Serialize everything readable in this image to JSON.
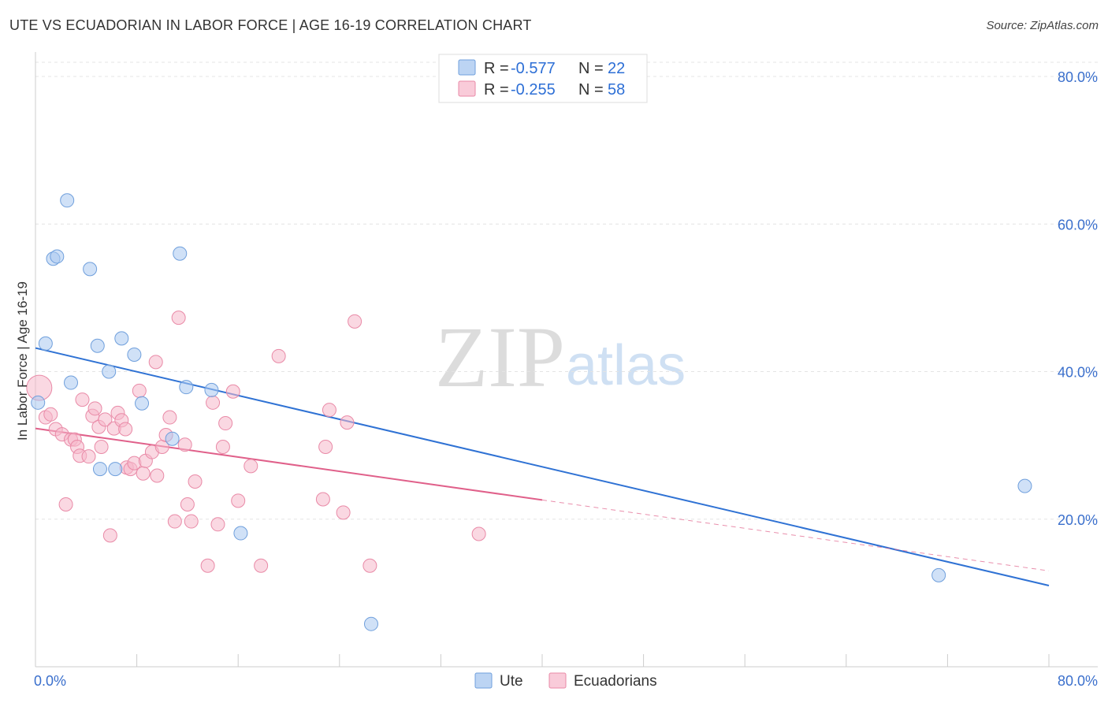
{
  "header": {
    "title": "UTE VS ECUADORIAN IN LABOR FORCE | AGE 16-19 CORRELATION CHART",
    "source": "Source: ZipAtlas.com"
  },
  "watermark": {
    "zip": "ZIP",
    "atlas": "atlas"
  },
  "legend": {
    "rows": [
      {
        "r_label": "R =",
        "r_value": "-0.577",
        "n_label": "N =",
        "n_value": "22",
        "color": "#a9c8f0"
      },
      {
        "r_label": "R =",
        "r_value": "-0.255",
        "n_label": "N =",
        "n_value": "58",
        "color": "#f5b8cb"
      }
    ]
  },
  "chart_data": {
    "type": "scatter",
    "title": "UTE VS ECUADORIAN IN LABOR FORCE | AGE 16-19 CORRELATION CHART",
    "xlabel": "",
    "ylabel": "In Labor Force | Age 16-19",
    "xlim": [
      0,
      80
    ],
    "ylim": [
      0,
      80
    ],
    "x_tick_labels": [
      "0.0%",
      "80.0%"
    ],
    "y_ticks": [
      20,
      40,
      60,
      80
    ],
    "y_tick_labels": [
      "20.0%",
      "40.0%",
      "60.0%",
      "80.0%"
    ],
    "grid": true,
    "legend_position": "bottom",
    "series": [
      {
        "name": "Ute",
        "color": "#a9c8f0",
        "stroke": "#6f9fdc",
        "line_color": "#2f72d4",
        "trend": {
          "x0": 0,
          "y0": 43.2,
          "x1": 80,
          "y1": 11.0
        },
        "points": [
          [
            0.2,
            35.8
          ],
          [
            0.8,
            43.8
          ],
          [
            1.4,
            55.3
          ],
          [
            1.7,
            55.6
          ],
          [
            2.5,
            63.2
          ],
          [
            2.8,
            38.5
          ],
          [
            4.3,
            53.9
          ],
          [
            4.9,
            43.5
          ],
          [
            5.1,
            26.8
          ],
          [
            5.8,
            40.0
          ],
          [
            6.3,
            26.8
          ],
          [
            6.8,
            44.5
          ],
          [
            7.8,
            42.3
          ],
          [
            8.4,
            35.7
          ],
          [
            10.8,
            30.9
          ],
          [
            11.4,
            56.0
          ],
          [
            11.9,
            37.9
          ],
          [
            13.9,
            37.5
          ],
          [
            16.2,
            18.1
          ],
          [
            26.5,
            5.8
          ],
          [
            71.3,
            12.4
          ],
          [
            78.1,
            24.5
          ]
        ]
      },
      {
        "name": "Ecuadorians",
        "color": "#f5b8cb",
        "stroke": "#e98aa7",
        "line_color": "#e0608a",
        "trend": {
          "x0": 0,
          "y0": 32.3,
          "x1": 40,
          "y1": 22.6
        },
        "trend_extension": {
          "x0": 40,
          "y0": 22.6,
          "x1": 80,
          "y1": 13.0
        },
        "points": [
          [
            0.3,
            37.8
          ],
          [
            0.8,
            33.8
          ],
          [
            1.2,
            34.2
          ],
          [
            1.6,
            32.2
          ],
          [
            2.1,
            31.5
          ],
          [
            2.4,
            22.0
          ],
          [
            2.8,
            30.8
          ],
          [
            3.1,
            30.8
          ],
          [
            3.3,
            29.8
          ],
          [
            3.5,
            28.6
          ],
          [
            3.7,
            36.2
          ],
          [
            4.2,
            28.5
          ],
          [
            4.5,
            34.0
          ],
          [
            4.7,
            35.0
          ],
          [
            5.0,
            32.5
          ],
          [
            5.2,
            29.8
          ],
          [
            5.5,
            33.5
          ],
          [
            5.9,
            17.8
          ],
          [
            6.2,
            32.3
          ],
          [
            6.5,
            34.4
          ],
          [
            6.8,
            33.4
          ],
          [
            7.1,
            32.2
          ],
          [
            7.2,
            27.0
          ],
          [
            7.5,
            26.8
          ],
          [
            7.8,
            27.6
          ],
          [
            8.2,
            37.4
          ],
          [
            8.5,
            26.2
          ],
          [
            8.7,
            27.9
          ],
          [
            9.2,
            29.1
          ],
          [
            9.5,
            41.3
          ],
          [
            10.0,
            29.8
          ],
          [
            10.3,
            31.4
          ],
          [
            10.6,
            33.8
          ],
          [
            11.0,
            19.7
          ],
          [
            11.3,
            47.3
          ],
          [
            11.8,
            30.1
          ],
          [
            12.0,
            22.0
          ],
          [
            12.3,
            19.7
          ],
          [
            12.6,
            25.1
          ],
          [
            13.6,
            13.7
          ],
          [
            14.0,
            35.8
          ],
          [
            14.4,
            19.3
          ],
          [
            14.8,
            29.8
          ],
          [
            15.0,
            33.0
          ],
          [
            15.6,
            37.3
          ],
          [
            17.0,
            27.2
          ],
          [
            17.8,
            13.7
          ],
          [
            19.2,
            42.1
          ],
          [
            22.7,
            22.7
          ],
          [
            22.9,
            29.8
          ],
          [
            23.2,
            34.8
          ],
          [
            24.3,
            20.9
          ],
          [
            24.6,
            33.1
          ],
          [
            25.2,
            46.8
          ],
          [
            26.4,
            13.7
          ],
          [
            35.0,
            18.0
          ],
          [
            9.6,
            25.9
          ],
          [
            16.0,
            22.5
          ]
        ]
      }
    ]
  },
  "bottom_legend": {
    "items": [
      "Ute",
      "Ecuadorians"
    ]
  }
}
